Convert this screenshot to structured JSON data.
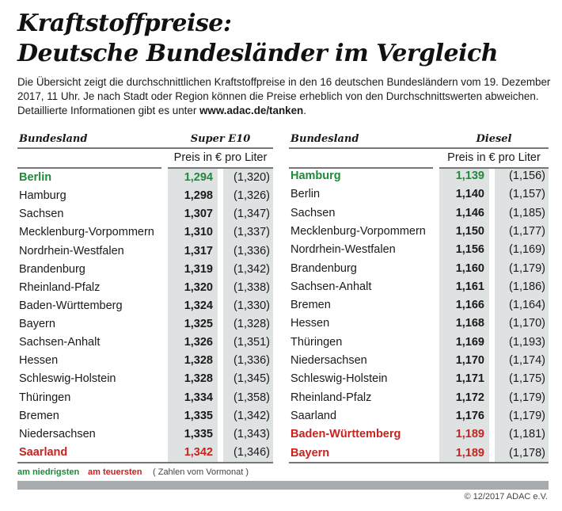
{
  "title_line1": "Kraftstoffpreise:",
  "title_line2": "Deutsche Bundesländer im Vergleich",
  "intro_text": "Die Übersicht zeigt die durchschnittlichen Kraftstoffpreise in den 16 deutschen Bundesländern vom 19. Dezember 2017, 11 Uhr. Je nach Stadt oder Region können die Preise erheblich von den Durchschnittswerten abweichen. Detaillierte Informationen gibt es unter ",
  "intro_link": "www.adac.de/tanken",
  "intro_end": ".",
  "colors": {
    "lowest": "#1e8a3a",
    "highest": "#c8231e",
    "value_column_bg": "#dfe2e3"
  },
  "tables": [
    {
      "header_state": "Bundesland",
      "header_fuel": "Super E10",
      "unit": "Preis in € pro Liter",
      "rows": [
        {
          "state": "Berlin",
          "price": "1,294",
          "prev": "(1,320)",
          "mark": "lowest"
        },
        {
          "state": "Hamburg",
          "price": "1,298",
          "prev": "(1,326)"
        },
        {
          "state": "Sachsen",
          "price": "1,307",
          "prev": "(1,347)"
        },
        {
          "state": "Mecklenburg-Vorpommern",
          "price": "1,310",
          "prev": "(1,337)"
        },
        {
          "state": "Nordrhein-Westfalen",
          "price": "1,317",
          "prev": "(1,336)"
        },
        {
          "state": "Brandenburg",
          "price": "1,319",
          "prev": "(1,342)"
        },
        {
          "state": "Rheinland-Pfalz",
          "price": "1,320",
          "prev": "(1,338)"
        },
        {
          "state": "Baden-Württemberg",
          "price": "1,324",
          "prev": "(1,330)"
        },
        {
          "state": "Bayern",
          "price": "1,325",
          "prev": "(1,328)"
        },
        {
          "state": "Sachsen-Anhalt",
          "price": "1,326",
          "prev": "(1,351)"
        },
        {
          "state": "Hessen",
          "price": "1,328",
          "prev": "(1,336)"
        },
        {
          "state": "Schleswig-Holstein",
          "price": "1,328",
          "prev": "(1,345)"
        },
        {
          "state": "Thüringen",
          "price": "1,334",
          "prev": "(1,358)"
        },
        {
          "state": "Bremen",
          "price": "1,335",
          "prev": "(1,342)"
        },
        {
          "state": "Niedersachsen",
          "price": "1,335",
          "prev": "(1,343)"
        },
        {
          "state": "Saarland",
          "price": "1,342",
          "prev": "(1,346)",
          "mark": "highest"
        }
      ]
    },
    {
      "header_state": "Bundesland",
      "header_fuel": "Diesel",
      "unit": "Preis in € pro Liter",
      "rows": [
        {
          "state": "Hamburg",
          "price": "1,139",
          "prev": "(1,156)",
          "mark": "lowest"
        },
        {
          "state": "Berlin",
          "price": "1,140",
          "prev": "(1,157)"
        },
        {
          "state": "Sachsen",
          "price": "1,146",
          "prev": "(1,185)"
        },
        {
          "state": "Mecklenburg-Vorpommern",
          "price": "1,150",
          "prev": "(1,177)"
        },
        {
          "state": "Nordrhein-Westfalen",
          "price": "1,156",
          "prev": "(1,169)"
        },
        {
          "state": "Brandenburg",
          "price": "1,160",
          "prev": "(1,179)"
        },
        {
          "state": "Sachsen-Anhalt",
          "price": "1,161",
          "prev": "(1,186)"
        },
        {
          "state": "Bremen",
          "price": "1,166",
          "prev": "(1,164)"
        },
        {
          "state": "Hessen",
          "price": "1,168",
          "prev": "(1,170)"
        },
        {
          "state": "Thüringen",
          "price": "1,169",
          "prev": "(1,193)"
        },
        {
          "state": "Niedersachsen",
          "price": "1,170",
          "prev": "(1,174)"
        },
        {
          "state": "Schleswig-Holstein",
          "price": "1,171",
          "prev": "(1,175)"
        },
        {
          "state": "Rheinland-Pfalz",
          "price": "1,172",
          "prev": "(1,179)"
        },
        {
          "state": "Saarland",
          "price": "1,176",
          "prev": "(1,179)"
        },
        {
          "state": "Baden-Württemberg",
          "price": "1,189",
          "prev": "(1,181)",
          "mark": "highest"
        },
        {
          "state": "Bayern",
          "price": "1,189",
          "prev": "(1,178)",
          "mark": "highest"
        }
      ]
    }
  ],
  "legend": {
    "lowest": "am niedrigsten",
    "highest": "am teuersten",
    "previous": "( Zahlen vom Vormonat )"
  },
  "copyright": "© 12/2017 ADAC e.V."
}
